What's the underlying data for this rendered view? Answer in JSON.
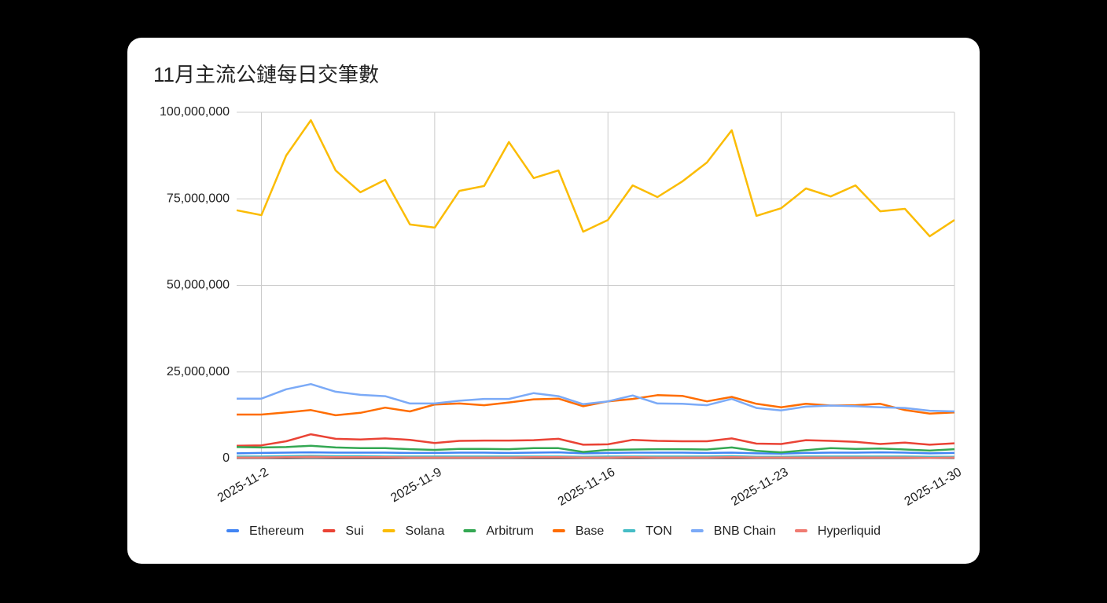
{
  "chart_data": {
    "type": "line",
    "title": "11月主流公鏈每日交筆數",
    "categories": [
      null,
      "2025-11-2",
      null,
      null,
      null,
      null,
      null,
      null,
      "2025-11-9",
      null,
      null,
      null,
      null,
      null,
      null,
      "2025-11-16",
      null,
      null,
      null,
      null,
      null,
      null,
      "2025-11-23",
      null,
      null,
      null,
      null,
      null,
      null,
      "2025-11-30"
    ],
    "ylim": [
      0,
      100000000
    ],
    "yticks": [
      0,
      {
        "value": 25000000,
        "label": "25,000,000"
      },
      {
        "value": 50000000,
        "label": "50,000,000"
      },
      {
        "value": 75000000,
        "label": "75,000,000"
      },
      {
        "value": 100000000,
        "label": "100,000,000"
      }
    ],
    "grid": true,
    "series": [
      {
        "name": "Ethereum",
        "color": "#4285f4",
        "values": [
          1500000,
          1600000,
          1700000,
          1800000,
          1700000,
          1700000,
          1700000,
          1600000,
          1600000,
          1700000,
          1700000,
          1600000,
          1700000,
          1800000,
          1500000,
          1600000,
          1700000,
          1700000,
          1700000,
          1600000,
          1700000,
          1500000,
          1400000,
          1600000,
          1700000,
          1700000,
          1800000,
          1700000,
          1500000,
          1600000
        ]
      },
      {
        "name": "Sui",
        "color": "#ea4335",
        "values": [
          3700000,
          3800000,
          5000000,
          7000000,
          5700000,
          5500000,
          5800000,
          5400000,
          4500000,
          5100000,
          5200000,
          5200000,
          5300000,
          5700000,
          4000000,
          4100000,
          5400000,
          5100000,
          5000000,
          5000000,
          5800000,
          4300000,
          4200000,
          5300000,
          5100000,
          4800000,
          4200000,
          4600000,
          4000000,
          4400000
        ]
      },
      {
        "name": "Solana",
        "color": "#fbbc04",
        "values": [
          71700000,
          70300000,
          87500000,
          97700000,
          83200000,
          76900000,
          80500000,
          67600000,
          66700000,
          77300000,
          78700000,
          91400000,
          81000000,
          83200000,
          65500000,
          68900000,
          78900000,
          75500000,
          80000000,
          85500000,
          94800000,
          70100000,
          72300000,
          78000000,
          75700000,
          78900000,
          71400000,
          72100000,
          64200000,
          68900000
        ]
      },
      {
        "name": "Arbitrum",
        "color": "#34a853",
        "values": [
          3300000,
          3200000,
          3300000,
          3700000,
          3200000,
          3000000,
          3000000,
          2700000,
          2500000,
          2800000,
          2800000,
          2700000,
          3000000,
          3000000,
          1900000,
          2500000,
          2600000,
          2700000,
          2700000,
          2600000,
          3200000,
          2200000,
          1800000,
          2400000,
          3000000,
          2800000,
          2900000,
          2600000,
          2300000,
          2700000
        ]
      },
      {
        "name": "Base",
        "color": "#ff6d01",
        "values": [
          12700000,
          12700000,
          13300000,
          14000000,
          12500000,
          13200000,
          14700000,
          13600000,
          15600000,
          15900000,
          15400000,
          16200000,
          17100000,
          17300000,
          15100000,
          16500000,
          17200000,
          18300000,
          18100000,
          16500000,
          17800000,
          15800000,
          14800000,
          15800000,
          15300000,
          15400000,
          15800000,
          14000000,
          13000000,
          13300000
        ]
      },
      {
        "name": "TON",
        "color": "#46bdc6",
        "values": [
          600000,
          600000,
          700000,
          800000,
          700000,
          700000,
          600000,
          600000,
          600000,
          600000,
          600000,
          600000,
          600000,
          600000,
          500000,
          600000,
          600000,
          600000,
          600000,
          600000,
          700000,
          500000,
          500000,
          600000,
          600000,
          600000,
          600000,
          600000,
          500000,
          500000
        ]
      },
      {
        "name": "BNB Chain",
        "color": "#7baaf7",
        "values": [
          17300000,
          17300000,
          20000000,
          21500000,
          19300000,
          18400000,
          18000000,
          15900000,
          15900000,
          16700000,
          17200000,
          17200000,
          18900000,
          18000000,
          15700000,
          16500000,
          18200000,
          15900000,
          15800000,
          15400000,
          17200000,
          14600000,
          13900000,
          15000000,
          15300000,
          15100000,
          14800000,
          14600000,
          13800000,
          13600000
        ]
      },
      {
        "name": "Hyperliquid",
        "color": "#f07b72",
        "values": [
          300000,
          300000,
          400000,
          500000,
          400000,
          400000,
          400000,
          300000,
          300000,
          300000,
          300000,
          300000,
          400000,
          400000,
          300000,
          300000,
          400000,
          300000,
          300000,
          300000,
          400000,
          300000,
          300000,
          300000,
          300000,
          300000,
          300000,
          300000,
          200000,
          300000
        ]
      }
    ]
  }
}
